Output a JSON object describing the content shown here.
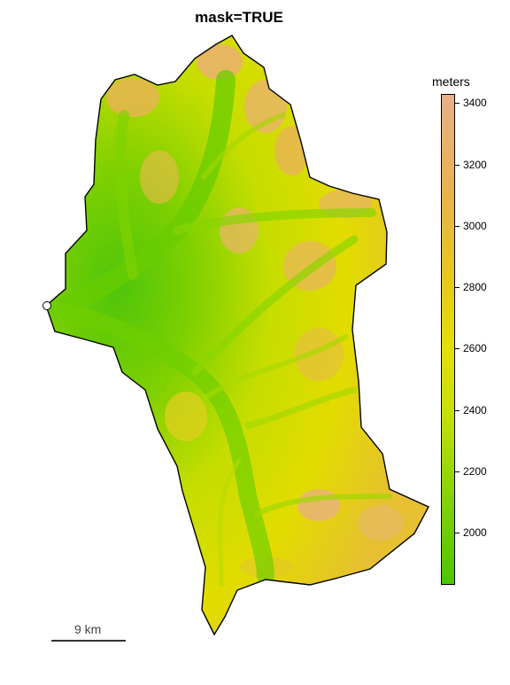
{
  "map": {
    "title": "mask=TRUE",
    "legend": {
      "title": "meters",
      "min": 1830,
      "max": 3430,
      "ticks": [
        {
          "value": 3400,
          "label": "3400"
        },
        {
          "value": 3200,
          "label": "3200"
        },
        {
          "value": 3000,
          "label": "3000"
        },
        {
          "value": 2800,
          "label": "2800"
        },
        {
          "value": 2600,
          "label": "2600"
        },
        {
          "value": 2400,
          "label": "2400"
        },
        {
          "value": 2200,
          "label": "2200"
        },
        {
          "value": 2000,
          "label": "2000"
        }
      ],
      "colors": [
        "#e8b08a",
        "#e7b24f",
        "#e7c81c",
        "#e2e000",
        "#c4e000",
        "#86d300",
        "#4cc500"
      ]
    },
    "scale_bar": {
      "label": "9 km"
    },
    "colors": {
      "low": "#52c70a",
      "mid": "#e2e000",
      "high": "#e9b26a",
      "outline": "#000000"
    }
  }
}
